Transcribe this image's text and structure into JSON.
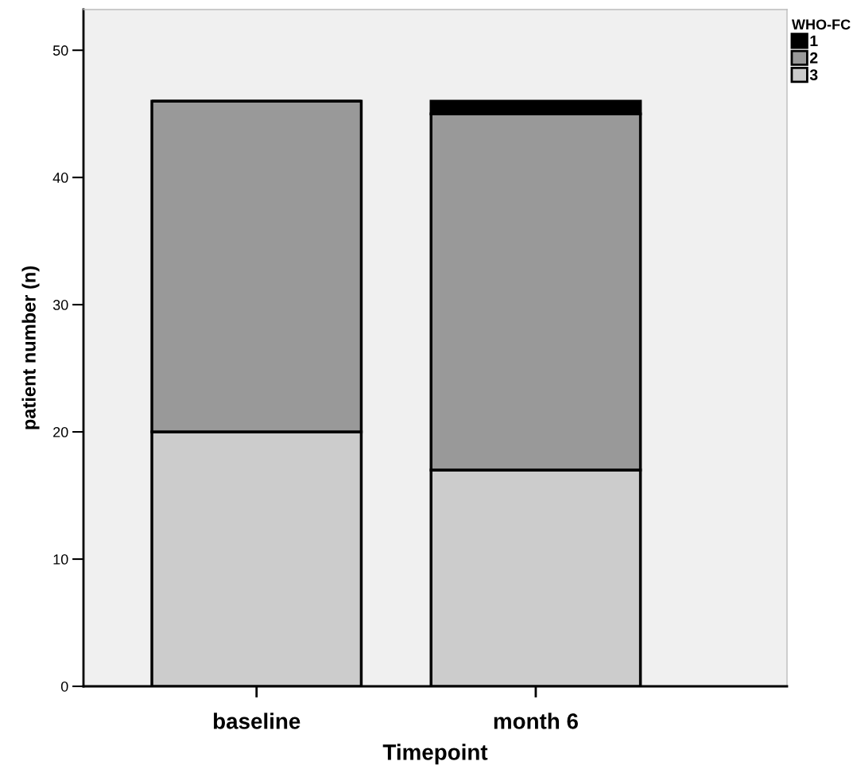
{
  "chart_data": {
    "type": "bar",
    "stacked": true,
    "xlabel": "Timepoint",
    "ylabel": "patient number (n)",
    "legend_title": "WHO-FC",
    "categories": [
      "baseline",
      "month 6"
    ],
    "series": [
      {
        "name": "3",
        "color": "#cccccc",
        "values": [
          20,
          17
        ]
      },
      {
        "name": "2",
        "color": "#999999",
        "values": [
          26,
          28
        ]
      },
      {
        "name": "1",
        "color": "#000000",
        "values": [
          0,
          1
        ]
      }
    ],
    "ylim": [
      0,
      53.2
    ],
    "yticks": [
      0,
      10,
      20,
      30,
      40,
      50
    ],
    "grid": false,
    "legend": "top right"
  }
}
